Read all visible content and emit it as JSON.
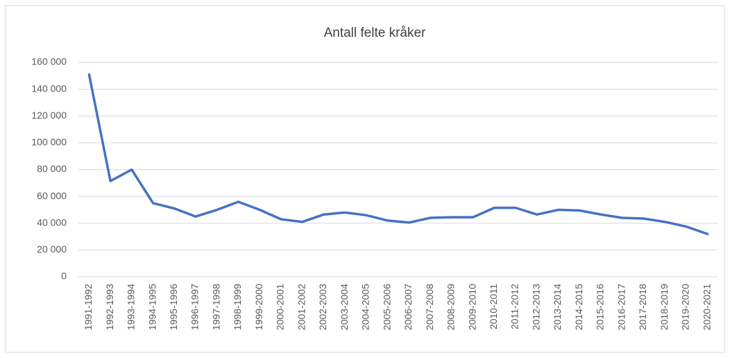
{
  "chart_data": {
    "type": "line",
    "title": "Antall felte kråker",
    "categories": [
      "1991-1992",
      "1992-1993",
      "1993-1994",
      "1994-1995",
      "1995-1996",
      "1996-1997",
      "1997-1998",
      "1998-1999",
      "1999-2000",
      "2000-2001",
      "2001-2002",
      "2002-2003",
      "2003-2004",
      "2004-2005",
      "2005-2006",
      "2006-2007",
      "2007-2008",
      "2008-2009",
      "2009-2010",
      "2010-2011",
      "2011-2012",
      "2012-2013",
      "2013-2014",
      "2014-2015",
      "2015-2016",
      "2016-2017",
      "2017-2018",
      "2018-2019",
      "2019-2020",
      "2020-2021"
    ],
    "series": [
      {
        "name": "Antall felte kråker",
        "color": "#4472c4",
        "values": [
          151000,
          71500,
          80000,
          55000,
          51000,
          45000,
          50000,
          56000,
          50000,
          43000,
          41000,
          46500,
          48000,
          46000,
          42000,
          40500,
          44000,
          44500,
          44500,
          51500,
          51500,
          46500,
          50000,
          49500,
          46500,
          44000,
          43500,
          41000,
          37500,
          32000
        ]
      }
    ],
    "ylim": [
      0,
      160000
    ],
    "yticks": [
      0,
      {
        "value": 20000,
        "label": "20 000"
      },
      {
        "value": 40000,
        "label": "40 000"
      },
      {
        "value": 60000,
        "label": "60 000"
      },
      {
        "value": 80000,
        "label": "80 000"
      },
      {
        "value": 100000,
        "label": "100 000"
      },
      {
        "value": 120000,
        "label": "120 000"
      },
      {
        "value": 140000,
        "label": "140 000"
      },
      {
        "value": 160000,
        "label": "160 000"
      }
    ],
    "grid": true
  }
}
